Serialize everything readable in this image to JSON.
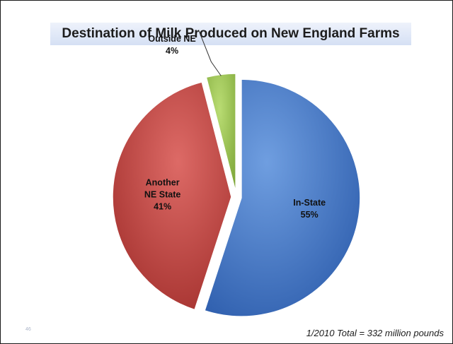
{
  "slide": {
    "page_number": "46",
    "footnote": "1/2010 Total = 332 million pounds"
  },
  "chart_data": {
    "type": "pie",
    "title": "Destination of Milk Produced on New England Farms",
    "exploded": true,
    "slices": [
      {
        "name": "In-State",
        "value": 55,
        "value_label": "55%",
        "label_lines": [
          "In-State"
        ],
        "color": "#3d73c4"
      },
      {
        "name": "Another NE State",
        "value": 41,
        "value_label": "41%",
        "label_lines": [
          "Another",
          "NE State"
        ],
        "color": "#c0413e"
      },
      {
        "name": "Outside NE",
        "value": 4,
        "value_label": "4%",
        "label_lines": [
          "Outside NE"
        ],
        "color": "#98c24c"
      }
    ]
  }
}
